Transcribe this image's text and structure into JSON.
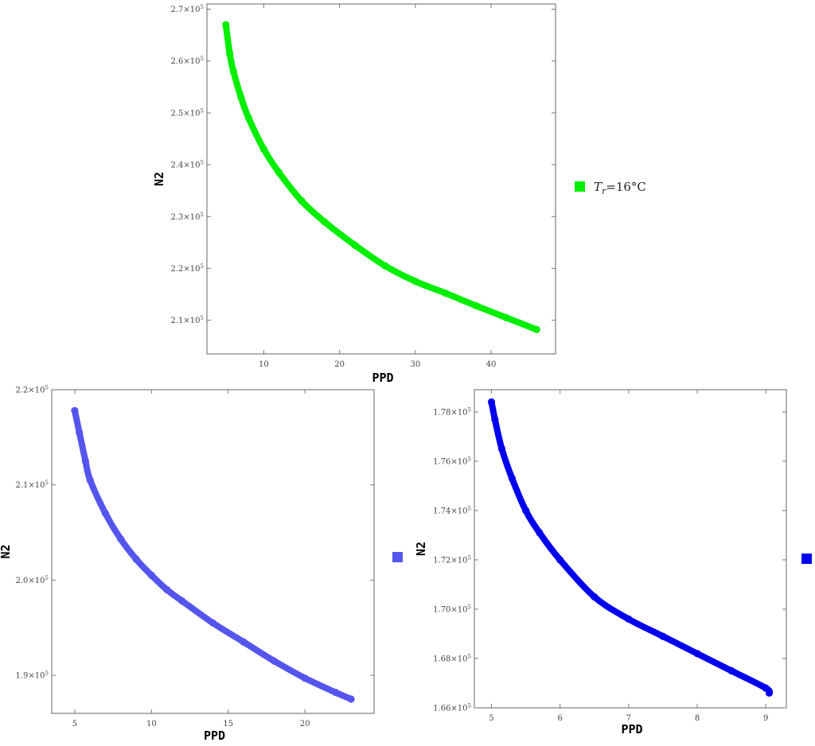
{
  "chart_data": [
    {
      "type": "scatter",
      "xlabel": "PPD",
      "ylabel": "N2",
      "xlim": [
        2.5,
        48.5
      ],
      "ylim": [
        2.035,
        2.71
      ],
      "x_ticks": [
        10,
        20,
        30,
        40
      ],
      "x_tick_labels": [
        "10",
        "20",
        "30",
        "40"
      ],
      "y_ticks": [
        2.1,
        2.2,
        2.3,
        2.4,
        2.5,
        2.6,
        2.7
      ],
      "y_tick_labels": [
        "2.1×10",
        "2.2×10",
        "2.3×10",
        "2.4×10",
        "2.5×10",
        "2.6×10",
        "2.7×10"
      ],
      "y_tick_exponent": "5",
      "y_scale_note": "values ×10^5",
      "series": [
        {
          "name": "T_r=16°C",
          "color": "#00ee00",
          "x": [
            5,
            5.5,
            6,
            7,
            8,
            10,
            12,
            15,
            18,
            22,
            26,
            30,
            34,
            38,
            42,
            46
          ],
          "y": [
            2.67,
            2.615,
            2.58,
            2.53,
            2.49,
            2.43,
            2.385,
            2.33,
            2.29,
            2.245,
            2.205,
            2.175,
            2.152,
            2.128,
            2.105,
            2.082
          ]
        }
      ],
      "legend": [
        {
          "color": "#00ee00",
          "label_main": "T",
          "label_sub": "r",
          "label_rest": "=16°C"
        }
      ]
    },
    {
      "type": "scatter",
      "xlabel": "PPD",
      "ylabel": "N2",
      "xlim": [
        3.5,
        24.5
      ],
      "ylim": [
        1.86,
        2.2
      ],
      "x_ticks": [
        5,
        10,
        15,
        20
      ],
      "x_tick_labels": [
        "5",
        "10",
        "15",
        "20"
      ],
      "y_ticks": [
        1.9,
        2.0,
        2.1,
        2.2
      ],
      "y_tick_labels": [
        "1.9×10",
        "2.0×10",
        "2.1×10",
        "2.2×10"
      ],
      "y_tick_exponent": "5",
      "y_scale_note": "values ×10^5",
      "series": [
        {
          "color": "#5555ee",
          "x": [
            5,
            5.3,
            5.7,
            6,
            7,
            8,
            9,
            10,
            11,
            12,
            14,
            16,
            18,
            20,
            22,
            23
          ],
          "y": [
            2.178,
            2.155,
            2.125,
            2.105,
            2.07,
            2.043,
            2.022,
            2.005,
            1.99,
            1.978,
            1.955,
            1.935,
            1.915,
            1.897,
            1.882,
            1.875
          ]
        }
      ],
      "legend": [
        {
          "color": "#5555ee"
        }
      ]
    },
    {
      "type": "scatter",
      "xlabel": "PPD",
      "ylabel": "N2",
      "xlim": [
        4.75,
        9.3
      ],
      "ylim": [
        1.66,
        1.789
      ],
      "x_ticks": [
        5,
        6,
        7,
        8,
        9
      ],
      "x_tick_labels": [
        "5",
        "6",
        "7",
        "8",
        "9"
      ],
      "y_ticks": [
        1.66,
        1.68,
        1.7,
        1.72,
        1.74,
        1.76,
        1.78
      ],
      "y_tick_labels": [
        "1.66×10",
        "1.68×10",
        "1.70×10",
        "1.72×10",
        "1.74×10",
        "1.76×10",
        "1.78×10"
      ],
      "y_tick_exponent": "5",
      "y_scale_note": "values ×10^5",
      "series": [
        {
          "color": "#0000ee",
          "x": [
            5,
            5.05,
            5.15,
            5.3,
            5.5,
            5.7,
            6,
            6.5,
            7,
            7.5,
            8,
            8.5,
            9,
            9.05
          ],
          "y": [
            1.784,
            1.777,
            1.765,
            1.753,
            1.74,
            1.731,
            1.72,
            1.705,
            1.696,
            1.689,
            1.682,
            1.675,
            1.668,
            1.666
          ]
        }
      ],
      "legend": [
        {
          "color": "#0000ee"
        }
      ]
    }
  ]
}
